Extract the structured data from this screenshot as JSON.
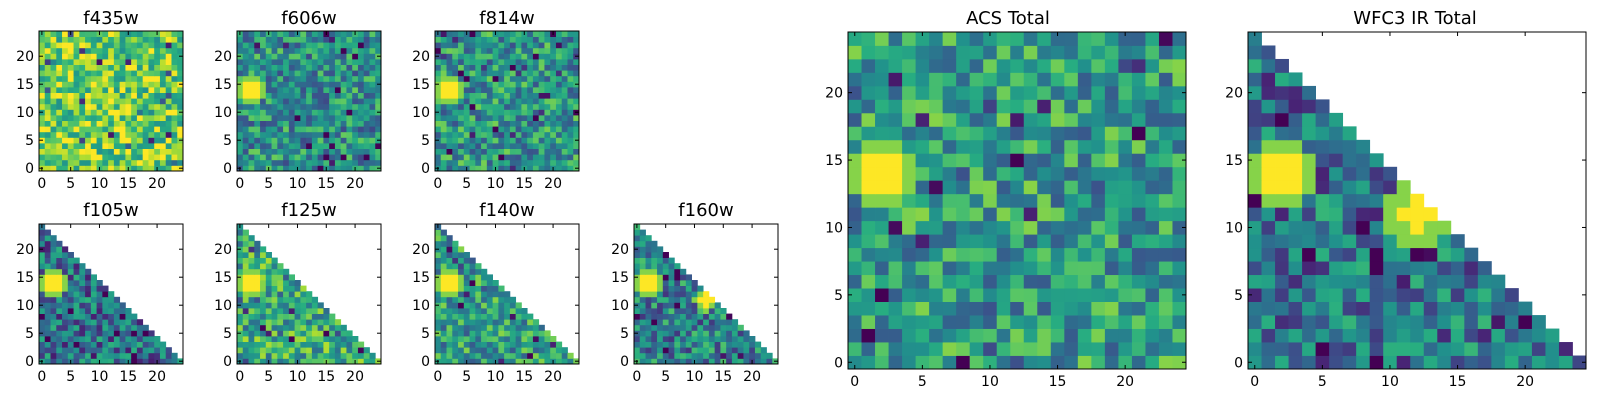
{
  "chart_data": [
    {
      "type": "heatmap",
      "title": "f435w",
      "xticks": [
        0,
        5,
        10,
        15,
        20
      ],
      "yticks": [
        0,
        5,
        10,
        15,
        20
      ],
      "xlim": [
        -0.5,
        24.5
      ],
      "ylim": [
        -0.5,
        24.5
      ],
      "grid": false,
      "colormap": "viridis",
      "mask": "none",
      "hotspots": []
    },
    {
      "type": "heatmap",
      "title": "f606w",
      "xticks": [
        0,
        5,
        10,
        15,
        20
      ],
      "yticks": [
        0,
        5,
        10,
        15,
        20
      ],
      "xlim": [
        -0.5,
        24.5
      ],
      "ylim": [
        -0.5,
        24.5
      ],
      "grid": false,
      "colormap": "viridis",
      "mask": "none",
      "hotspots": [
        {
          "x": 2,
          "y": 14,
          "r": 1.5
        }
      ]
    },
    {
      "type": "heatmap",
      "title": "f814w",
      "xticks": [
        0,
        5,
        10,
        15,
        20
      ],
      "yticks": [
        0,
        5,
        10,
        15,
        20
      ],
      "xlim": [
        -0.5,
        24.5
      ],
      "ylim": [
        -0.5,
        24.5
      ],
      "grid": false,
      "colormap": "viridis",
      "mask": "none",
      "hotspots": [
        {
          "x": 2,
          "y": 14,
          "r": 1.5
        }
      ]
    },
    {
      "type": "heatmap",
      "title": "f105w",
      "xticks": [
        0,
        5,
        10,
        15,
        20
      ],
      "yticks": [
        0,
        5,
        10,
        15,
        20
      ],
      "xlim": [
        -0.5,
        24.5
      ],
      "ylim": [
        -0.5,
        24.5
      ],
      "grid": false,
      "colormap": "viridis",
      "mask": "upper-right-triangle",
      "hotspots": [
        {
          "x": 2,
          "y": 14,
          "r": 1.5
        }
      ]
    },
    {
      "type": "heatmap",
      "title": "f125w",
      "xticks": [
        0,
        5,
        10,
        15,
        20
      ],
      "yticks": [
        0,
        5,
        10,
        15,
        20
      ],
      "xlim": [
        -0.5,
        24.5
      ],
      "ylim": [
        -0.5,
        24.5
      ],
      "grid": false,
      "colormap": "viridis",
      "mask": "upper-right-triangle",
      "hotspots": [
        {
          "x": 2,
          "y": 14,
          "r": 1.6
        }
      ]
    },
    {
      "type": "heatmap",
      "title": "f140w",
      "xticks": [
        0,
        5,
        10,
        15,
        20
      ],
      "yticks": [
        0,
        5,
        10,
        15,
        20
      ],
      "xlim": [
        -0.5,
        24.5
      ],
      "ylim": [
        -0.5,
        24.5
      ],
      "grid": false,
      "colormap": "viridis",
      "mask": "upper-right-triangle",
      "hotspots": [
        {
          "x": 2,
          "y": 14,
          "r": 1.5
        }
      ]
    },
    {
      "type": "heatmap",
      "title": "f160w",
      "xticks": [
        0,
        5,
        10,
        15,
        20
      ],
      "yticks": [
        0,
        5,
        10,
        15,
        20
      ],
      "xlim": [
        -0.5,
        24.5
      ],
      "ylim": [
        -0.5,
        24.5
      ],
      "grid": false,
      "colormap": "viridis",
      "mask": "upper-right-triangle",
      "hotspots": [
        {
          "x": 2,
          "y": 14,
          "r": 1.5
        },
        {
          "x": 12,
          "y": 11,
          "r": 1.0
        }
      ]
    },
    {
      "type": "heatmap",
      "title": "ACS Total",
      "xticks": [
        0,
        5,
        10,
        15,
        20
      ],
      "yticks": [
        0,
        5,
        10,
        15,
        20
      ],
      "xlim": [
        -0.5,
        24.5
      ],
      "ylim": [
        -0.5,
        24.5
      ],
      "grid": false,
      "colormap": "viridis",
      "mask": "none",
      "hotspots": [
        {
          "x": 2,
          "y": 14,
          "r": 1.6
        }
      ]
    },
    {
      "type": "heatmap",
      "title": "WFC3 IR Total",
      "xticks": [
        0,
        5,
        10,
        15,
        20
      ],
      "yticks": [
        0,
        5,
        10,
        15,
        20
      ],
      "xlim": [
        -0.5,
        24.5
      ],
      "ylim": [
        -0.5,
        24.5
      ],
      "grid": false,
      "colormap": "viridis",
      "mask": "upper-right-triangle",
      "hotspots": [
        {
          "x": 2,
          "y": 14,
          "r": 1.6
        },
        {
          "x": 12,
          "y": 11,
          "r": 1.2
        }
      ]
    }
  ]
}
